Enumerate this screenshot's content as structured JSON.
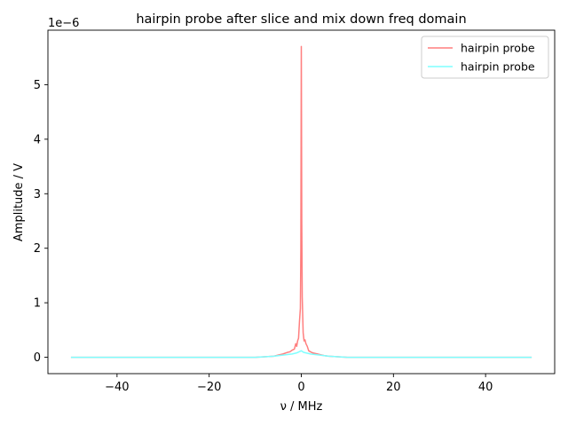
{
  "chart_data": {
    "type": "line",
    "title": "hairpin probe after slice and mix down freq domain",
    "xlabel": "ν / MHz",
    "ylabel": "Amplitude / V",
    "y_offset_label": "1e−6",
    "xlim": [
      -55,
      55
    ],
    "ylim": [
      -0.3,
      6.0
    ],
    "x_ticks": [
      -40,
      -20,
      0,
      20,
      40
    ],
    "x_tick_labels": [
      "−40",
      "−20",
      "0",
      "20",
      "40"
    ],
    "y_ticks": [
      0,
      1,
      2,
      3,
      4,
      5
    ],
    "y_tick_labels": [
      "0",
      "1",
      "2",
      "3",
      "4",
      "5"
    ],
    "grid": false,
    "legend_position": "top-right",
    "series": [
      {
        "name": "hairpin probe",
        "color": "#ff7f7f",
        "x": [
          -50,
          -10,
          -8,
          -6,
          -5,
          -4,
          -3,
          -2.5,
          -2,
          -1.5,
          -1.2,
          -1,
          -0.8,
          -0.6,
          -0.4,
          -0.2,
          -0.1,
          0,
          0.1,
          0.2,
          0.4,
          0.6,
          0.8,
          1,
          1.3,
          1.6,
          2,
          2.5,
          3,
          4,
          5,
          6,
          8,
          10,
          50
        ],
        "values": [
          0,
          0,
          0.01,
          0.02,
          0.04,
          0.06,
          0.09,
          0.1,
          0.13,
          0.15,
          0.25,
          0.2,
          0.3,
          0.35,
          0.65,
          0.9,
          2.0,
          5.7,
          2.5,
          1.1,
          0.45,
          0.3,
          0.32,
          0.25,
          0.2,
          0.12,
          0.1,
          0.08,
          0.07,
          0.05,
          0.03,
          0.02,
          0.01,
          0,
          0
        ]
      },
      {
        "name": "hairpin probe",
        "color": "#7fffff",
        "x": [
          -50,
          -10,
          -8,
          -6,
          -4,
          -3,
          -2,
          -1.5,
          -1,
          -0.5,
          0,
          0.5,
          1,
          1.5,
          2,
          3,
          4,
          6,
          8,
          10,
          50
        ],
        "values": [
          0,
          0,
          0.01,
          0.02,
          0.04,
          0.05,
          0.06,
          0.07,
          0.08,
          0.1,
          0.12,
          0.09,
          0.08,
          0.07,
          0.06,
          0.05,
          0.04,
          0.02,
          0.01,
          0,
          0
        ]
      }
    ]
  }
}
